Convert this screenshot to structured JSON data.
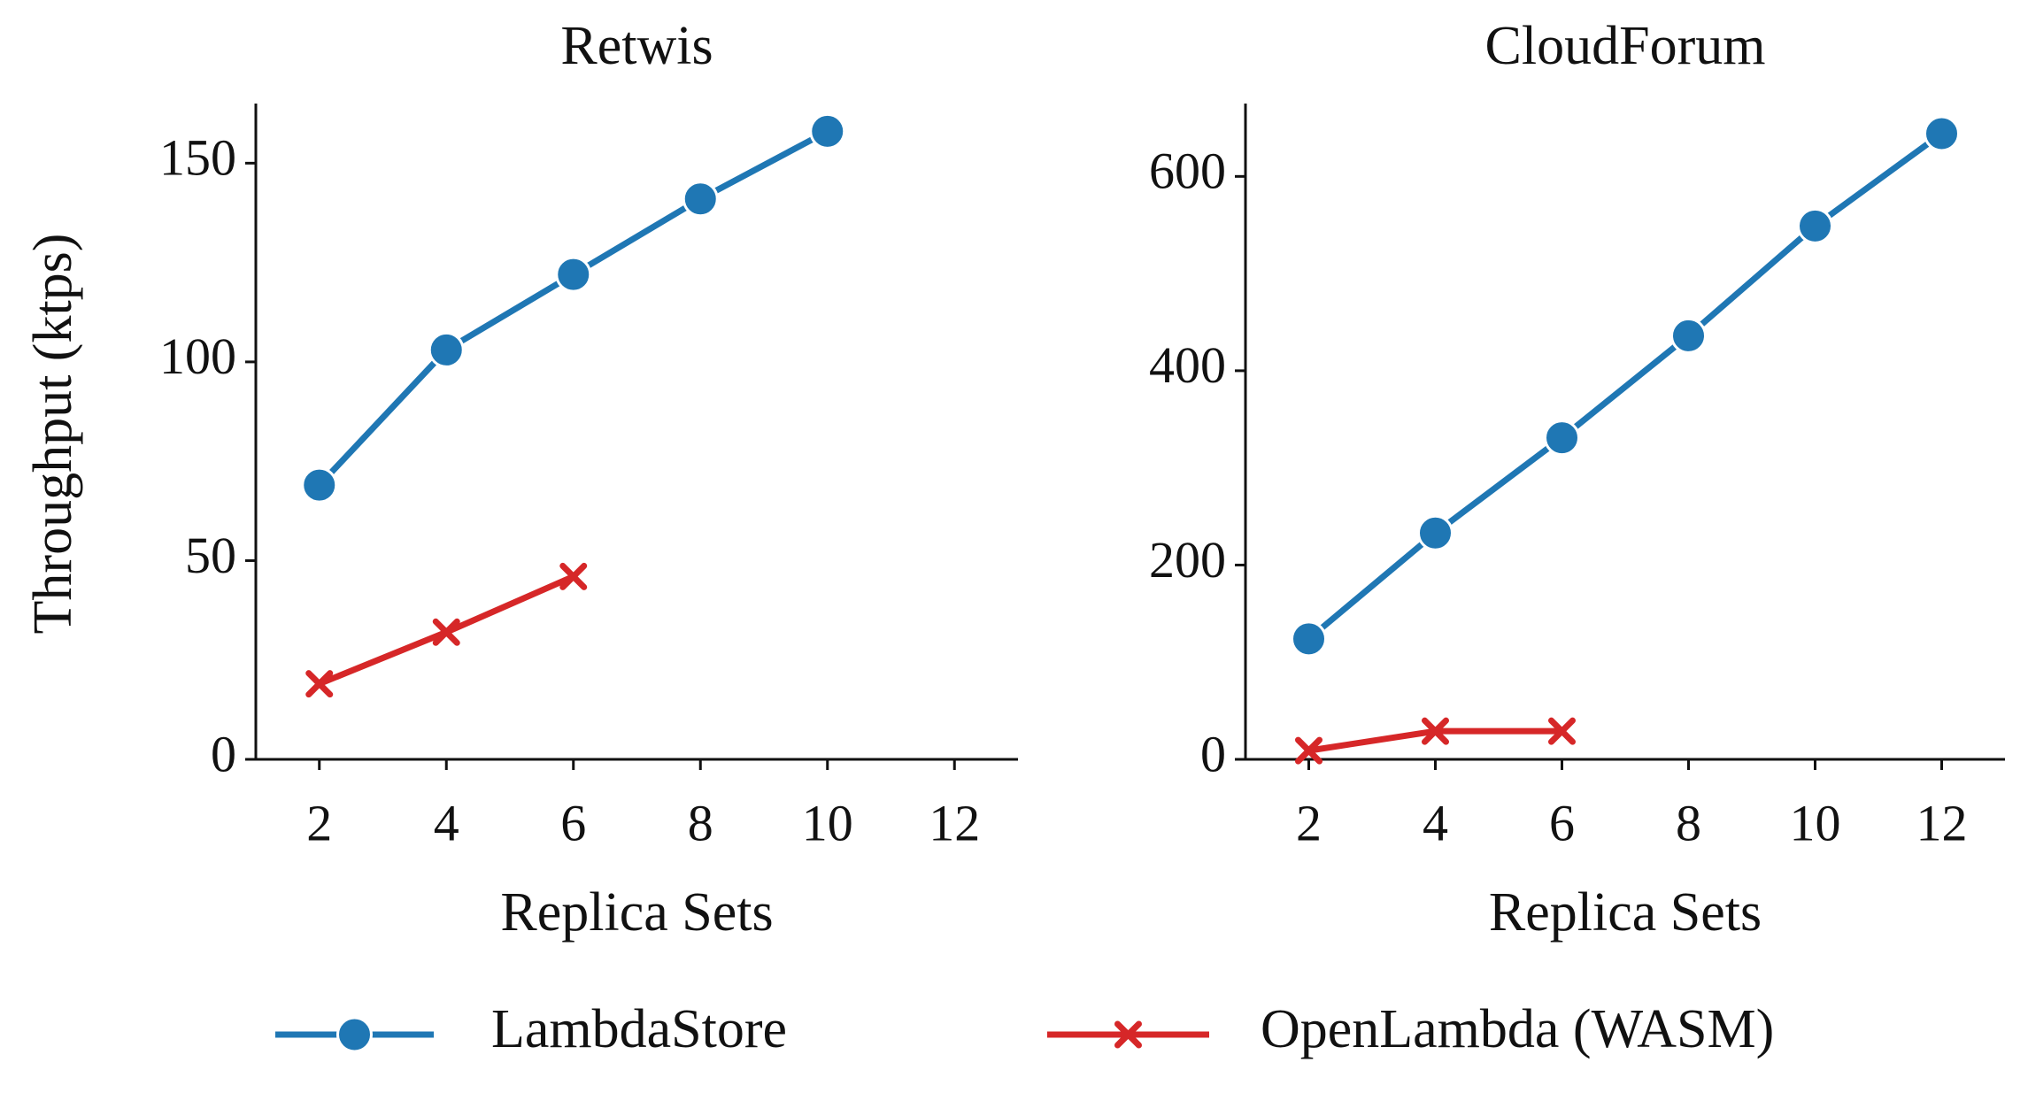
{
  "chart_data": [
    {
      "type": "line",
      "title": "Retwis",
      "x_label": "Replica Sets",
      "y_label": "Throughput (ktps)",
      "xlim": [
        1,
        13
      ],
      "xticks": [
        2,
        4,
        6,
        8,
        10,
        12
      ],
      "ylim": [
        0,
        165
      ],
      "yticks": [
        0,
        50,
        100,
        150
      ],
      "series": [
        {
          "name": "LambdaStore",
          "color": "#1f77b4",
          "marker": "circle",
          "x": [
            2,
            4,
            6,
            8,
            10
          ],
          "values": [
            69,
            103,
            122,
            141,
            158
          ]
        },
        {
          "name": "OpenLambda (WASM)",
          "color": "#d62728",
          "marker": "x",
          "x": [
            2,
            4,
            6
          ],
          "values": [
            19,
            32,
            46
          ]
        }
      ]
    },
    {
      "type": "line",
      "title": "CloudForum",
      "x_label": "Replica Sets",
      "xlim": [
        1,
        13
      ],
      "xticks": [
        2,
        4,
        6,
        8,
        10,
        12
      ],
      "ylim": [
        0,
        675
      ],
      "yticks": [
        0,
        200,
        400,
        600
      ],
      "series": [
        {
          "color": "#1f77b4",
          "marker": "circle",
          "x": [
            2,
            4,
            6,
            8,
            10,
            12
          ],
          "values": [
            124,
            233,
            331,
            436,
            549,
            644
          ]
        },
        {
          "color": "#d62728",
          "marker": "x",
          "x": [
            2,
            4,
            6
          ],
          "values": [
            9,
            29,
            29
          ]
        }
      ]
    }
  ]
}
